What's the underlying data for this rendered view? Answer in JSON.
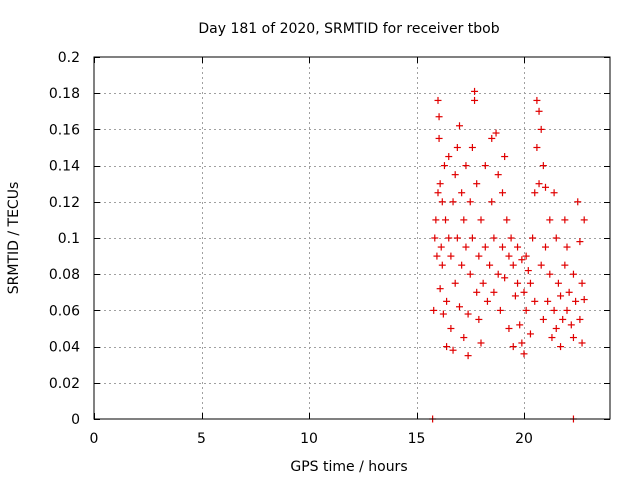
{
  "chart_data": {
    "type": "scatter",
    "title": "Day 181 of 2020, SRMTID for receiver tbob",
    "xlabel": "GPS time / hours",
    "ylabel": "SRMTID / TECUs",
    "xlim": [
      0,
      24
    ],
    "ylim": [
      0,
      0.2
    ],
    "x_ticks": [
      "0",
      "5",
      "10",
      "15",
      "20"
    ],
    "y_ticks": [
      "0",
      "0.02",
      "0.04",
      "0.06",
      "0.08",
      "0.1",
      "0.12",
      "0.14",
      "0.16",
      "0.18",
      "0.2"
    ],
    "grid": true,
    "marker": "+",
    "color": "#e00000",
    "series": [
      {
        "points": [
          [
            15.75,
            0.0
          ],
          [
            22.3,
            0.0
          ],
          [
            15.8,
            0.06
          ],
          [
            15.85,
            0.1
          ],
          [
            15.9,
            0.11
          ],
          [
            15.95,
            0.09
          ],
          [
            16.0,
            0.125
          ],
          [
            16.0,
            0.176
          ],
          [
            16.05,
            0.167
          ],
          [
            16.05,
            0.155
          ],
          [
            16.1,
            0.13
          ],
          [
            16.1,
            0.072
          ],
          [
            16.15,
            0.095
          ],
          [
            16.2,
            0.12
          ],
          [
            16.2,
            0.085
          ],
          [
            16.25,
            0.058
          ],
          [
            16.3,
            0.14
          ],
          [
            16.35,
            0.11
          ],
          [
            16.4,
            0.04
          ],
          [
            16.4,
            0.065
          ],
          [
            16.5,
            0.1
          ],
          [
            16.5,
            0.145
          ],
          [
            16.6,
            0.09
          ],
          [
            16.6,
            0.05
          ],
          [
            16.7,
            0.038
          ],
          [
            16.7,
            0.12
          ],
          [
            16.8,
            0.135
          ],
          [
            16.8,
            0.075
          ],
          [
            16.9,
            0.15
          ],
          [
            16.9,
            0.1
          ],
          [
            17.0,
            0.062
          ],
          [
            17.0,
            0.162
          ],
          [
            17.1,
            0.085
          ],
          [
            17.1,
            0.125
          ],
          [
            17.2,
            0.11
          ],
          [
            17.2,
            0.045
          ],
          [
            17.3,
            0.095
          ],
          [
            17.3,
            0.14
          ],
          [
            17.4,
            0.035
          ],
          [
            17.4,
            0.058
          ],
          [
            17.5,
            0.08
          ],
          [
            17.5,
            0.12
          ],
          [
            17.6,
            0.15
          ],
          [
            17.6,
            0.1
          ],
          [
            17.7,
            0.181
          ],
          [
            17.7,
            0.176
          ],
          [
            17.8,
            0.07
          ],
          [
            17.8,
            0.13
          ],
          [
            17.9,
            0.09
          ],
          [
            17.9,
            0.055
          ],
          [
            18.0,
            0.11
          ],
          [
            18.0,
            0.042
          ],
          [
            18.1,
            0.075
          ],
          [
            18.2,
            0.095
          ],
          [
            18.2,
            0.14
          ],
          [
            18.3,
            0.065
          ],
          [
            18.4,
            0.085
          ],
          [
            18.5,
            0.155
          ],
          [
            18.5,
            0.12
          ],
          [
            18.6,
            0.1
          ],
          [
            18.6,
            0.07
          ],
          [
            18.7,
            0.158
          ],
          [
            18.8,
            0.08
          ],
          [
            18.8,
            0.135
          ],
          [
            18.9,
            0.06
          ],
          [
            19.0,
            0.125
          ],
          [
            19.0,
            0.095
          ],
          [
            19.1,
            0.145
          ],
          [
            19.1,
            0.078
          ],
          [
            19.2,
            0.11
          ],
          [
            19.3,
            0.09
          ],
          [
            19.3,
            0.05
          ],
          [
            19.4,
            0.1
          ],
          [
            19.5,
            0.04
          ],
          [
            19.5,
            0.085
          ],
          [
            19.6,
            0.068
          ],
          [
            19.7,
            0.075
          ],
          [
            19.7,
            0.095
          ],
          [
            19.8,
            0.052
          ],
          [
            19.9,
            0.042
          ],
          [
            19.9,
            0.088
          ],
          [
            20.0,
            0.036
          ],
          [
            20.0,
            0.07
          ],
          [
            20.1,
            0.09
          ],
          [
            20.1,
            0.06
          ],
          [
            20.2,
            0.082
          ],
          [
            20.3,
            0.075
          ],
          [
            20.3,
            0.047
          ],
          [
            20.4,
            0.1
          ],
          [
            20.5,
            0.065
          ],
          [
            20.5,
            0.125
          ],
          [
            20.6,
            0.15
          ],
          [
            20.6,
            0.176
          ],
          [
            20.7,
            0.17
          ],
          [
            20.7,
            0.13
          ],
          [
            20.8,
            0.16
          ],
          [
            20.8,
            0.085
          ],
          [
            20.9,
            0.14
          ],
          [
            20.9,
            0.055
          ],
          [
            21.0,
            0.095
          ],
          [
            21.0,
            0.128
          ],
          [
            21.1,
            0.065
          ],
          [
            21.2,
            0.11
          ],
          [
            21.2,
            0.08
          ],
          [
            21.3,
            0.045
          ],
          [
            21.4,
            0.06
          ],
          [
            21.4,
            0.125
          ],
          [
            21.5,
            0.1
          ],
          [
            21.5,
            0.05
          ],
          [
            21.6,
            0.075
          ],
          [
            21.7,
            0.04
          ],
          [
            21.7,
            0.068
          ],
          [
            21.8,
            0.055
          ],
          [
            21.9,
            0.085
          ],
          [
            21.9,
            0.11
          ],
          [
            22.0,
            0.095
          ],
          [
            22.0,
            0.06
          ],
          [
            22.1,
            0.07
          ],
          [
            22.2,
            0.052
          ],
          [
            22.3,
            0.045
          ],
          [
            22.3,
            0.08
          ],
          [
            22.4,
            0.065
          ],
          [
            22.5,
            0.12
          ],
          [
            22.6,
            0.055
          ],
          [
            22.6,
            0.098
          ],
          [
            22.7,
            0.042
          ],
          [
            22.7,
            0.075
          ],
          [
            22.8,
            0.11
          ],
          [
            22.8,
            0.066
          ]
        ]
      }
    ]
  }
}
